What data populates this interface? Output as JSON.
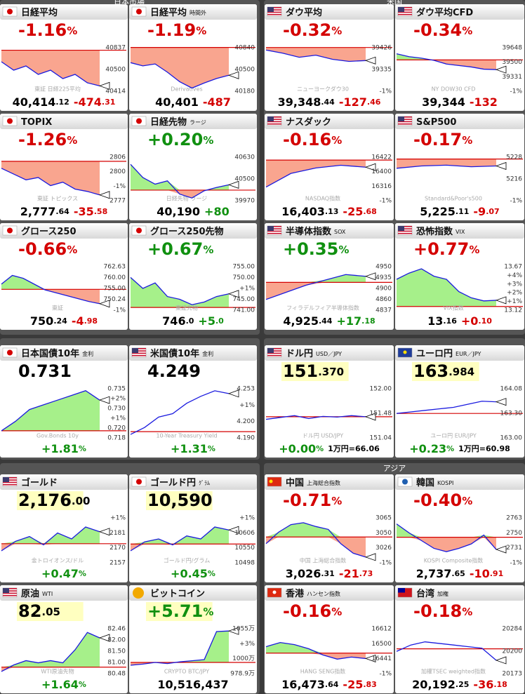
{
  "sections": [
    "日本市場",
    "米国",
    "アジア"
  ],
  "tiles": [
    {
      "flag": "jp",
      "name": "日経平均",
      "main": {
        "text": "-1.16",
        "small": "%"
      },
      "main_color": "#d40000",
      "foot": [
        {
          "text": "40,414",
          "small": ".12",
          "color": "#000000"
        },
        {
          "text": "-474",
          "small": ".31",
          "color": "#d40000"
        }
      ],
      "labels": [
        "40837",
        "40500",
        "40414"
      ],
      "watermark": "東証 日経225平均",
      "base": 40837,
      "line": [
        40700,
        40600,
        40650,
        40550,
        40600,
        40500,
        40550,
        40450,
        40414
      ],
      "ylim": [
        40350,
        40900
      ],
      "fill": true
    },
    {
      "flag": "jp",
      "name": "日経平均",
      "sub": "時間外",
      "main": {
        "text": "-1.19",
        "small": "%"
      },
      "main_color": "#d40000",
      "foot": [
        {
          "text": "40,401",
          "color": "#000000"
        },
        {
          "text": "-487",
          "color": "#d40000"
        }
      ],
      "labels": [
        "40840",
        "40500",
        "40180"
      ],
      "watermark": "Derivatives",
      "base": 40840,
      "line": [
        40600,
        40550,
        40580,
        40450,
        40300,
        40200,
        40280,
        40350,
        40401
      ],
      "ylim": [
        40150,
        40880
      ],
      "fill": true
    },
    {
      "flag": "jp",
      "name": "TOPIX",
      "main": {
        "text": "-1.26",
        "small": "%"
      },
      "main_color": "#d40000",
      "foot": [
        {
          "text": "2,777",
          "small": ".64",
          "color": "#000000"
        },
        {
          "text": "-35",
          "small": ".58",
          "color": "#d40000"
        }
      ],
      "labels": [
        "2806",
        "2800",
        "-1%",
        "2777"
      ],
      "watermark": "東証 トピックス",
      "base": 2806,
      "line": [
        2800,
        2795,
        2790,
        2792,
        2785,
        2788,
        2782,
        2780,
        2777
      ],
      "ylim": [
        2772,
        2812
      ],
      "fill": true
    },
    {
      "flag": "jp",
      "name": "日経先物",
      "sub": "ラージ",
      "main": {
        "text": "+0.20",
        "small": "%"
      },
      "main_color": "#109010",
      "foot": [
        {
          "text": "40,190",
          "color": "#000000"
        },
        {
          "text": "+80",
          "color": "#109010"
        }
      ],
      "labels": [
        "40630",
        "40500",
        "39970"
      ],
      "watermark": "日経先物 ラージ",
      "base": 40110,
      "line": [
        40500,
        40300,
        40200,
        40250,
        40050,
        39990,
        40100,
        40150,
        40190
      ],
      "ylim": [
        39950,
        40650
      ],
      "fill": true
    },
    {
      "flag": "jp",
      "name": "グロース250",
      "main": {
        "text": "-0.66",
        "small": "%"
      },
      "main_color": "#d40000",
      "foot": [
        {
          "text": "750",
          "small": ".24",
          "color": "#000000"
        },
        {
          "text": "-4",
          "small": ".98",
          "color": "#d40000"
        }
      ],
      "labels": [
        "762.63",
        "760.00",
        "755.00",
        "750.24",
        "-1%"
      ],
      "watermark": "東証",
      "base": 755.2,
      "line": [
        757,
        760,
        759,
        757,
        755,
        754,
        753,
        752,
        751,
        750.24
      ],
      "ylim": [
        748,
        764
      ],
      "fill": true
    },
    {
      "flag": "jp",
      "name": "グロース250先物",
      "main": {
        "text": "+0.67",
        "small": "%"
      },
      "main_color": "#109010",
      "foot": [
        {
          "text": "746",
          "small": ".0",
          "color": "#000000"
        },
        {
          "text": "+5",
          "small": ".0",
          "color": "#109010"
        }
      ],
      "labels": [
        "755.00",
        "750.00",
        "+1%",
        "745.00",
        "741.00"
      ],
      "watermark": "東証先物",
      "base": 741,
      "line": [
        752,
        748,
        750,
        745,
        744,
        742,
        743,
        745,
        746
      ],
      "ylim": [
        740,
        757
      ],
      "fill": true
    },
    {
      "flag": "us",
      "name": "ダウ平均",
      "main": {
        "text": "-0.32",
        "small": "%"
      },
      "main_color": "#d40000",
      "foot": [
        {
          "text": "39,348",
          "small": ".44",
          "color": "#000000"
        },
        {
          "text": "-127",
          "small": ".46",
          "color": "#d40000"
        }
      ],
      "labels": [
        "39426",
        "39335",
        "-1%"
      ],
      "watermark": "ニューヨークダウ30",
      "base": 39475,
      "line": [
        39450,
        39420,
        39380,
        39400,
        39360,
        39340,
        39348
      ],
      "ylim": [
        39050,
        39500
      ],
      "fill": true
    },
    {
      "flag": "us",
      "name": "ダウ平均CFD",
      "main": {
        "text": "-0.34",
        "small": "%"
      },
      "main_color": "#d40000",
      "foot": [
        {
          "text": "39,344",
          "color": "#000000"
        },
        {
          "text": "-132",
          "color": "#d40000"
        }
      ],
      "labels": [
        "39648",
        "39500",
        "39331",
        "-1%"
      ],
      "watermark": "NY DOW30 CFD",
      "base": 39476,
      "line": [
        39560,
        39520,
        39500,
        39470,
        39420,
        39400,
        39380,
        39350,
        39344
      ],
      "ylim": [
        39050,
        39680
      ],
      "fill": true
    },
    {
      "flag": "us",
      "name": "ナスダック",
      "main": {
        "text": "-0.16",
        "small": "%"
      },
      "main_color": "#d40000",
      "foot": [
        {
          "text": "16,403",
          "small": ".13",
          "color": "#000000"
        },
        {
          "text": "-25",
          "small": ".68",
          "color": "#d40000"
        }
      ],
      "labels": [
        "16422",
        "16400",
        "16316",
        "-1%"
      ],
      "watermark": "NASDAQ指数",
      "base": 16429,
      "line": [
        16330,
        16380,
        16400,
        16410,
        16403
      ],
      "ylim": [
        16280,
        16450
      ],
      "fill": true
    },
    {
      "flag": "us",
      "name": "S&P500",
      "main": {
        "text": "-0.17",
        "small": "%"
      },
      "main_color": "#d40000",
      "foot": [
        {
          "text": "5,225",
          "small": ".11",
          "color": "#000000"
        },
        {
          "text": "-9",
          "small": ".07",
          "color": "#d40000"
        }
      ],
      "labels": [
        "5228",
        "5216",
        "-1%"
      ],
      "watermark": "Standard&Poor's500",
      "base": 5234,
      "line": [
        5222,
        5225,
        5226,
        5224,
        5225
      ],
      "ylim": [
        5180,
        5240
      ],
      "fill": true
    },
    {
      "flag": "us",
      "name": "半導体指数",
      "sub": "SOX",
      "main": {
        "text": "+0.35",
        "small": "%"
      },
      "main_color": "#109010",
      "foot": [
        {
          "text": "4,925",
          "small": ".44",
          "color": "#000000"
        },
        {
          "text": "+17",
          "small": ".18",
          "color": "#109010"
        }
      ],
      "labels": [
        "4950",
        "4935",
        "4900",
        "4860",
        "4837"
      ],
      "watermark": "フィラデルフィア半導体指数",
      "base": 4908,
      "line": [
        4860,
        4880,
        4900,
        4915,
        4930,
        4925
      ],
      "ylim": [
        4830,
        4960
      ],
      "fill": true
    },
    {
      "flag": "us",
      "name": "恐怖指数",
      "sub": "VIX",
      "main": {
        "text": "+0.77",
        "small": "%"
      },
      "main_color": "#d40000",
      "foot": [
        {
          "text": "13",
          "small": ".16",
          "color": "#000000"
        },
        {
          "text": "+0",
          "small": ".10",
          "color": "#d40000"
        }
      ],
      "labels": [
        "13.67",
        "+4%",
        "+3%",
        "+2%",
        "+1%",
        "13.12"
      ],
      "watermark": "VIX指数",
      "base": 13.06,
      "line": [
        13.5,
        13.6,
        13.67,
        13.55,
        13.5,
        13.3,
        13.2,
        13.15,
        13.16
      ],
      "ylim": [
        13.0,
        13.75
      ],
      "fill": true
    },
    {
      "flag": "jp",
      "name": "日本国債10年",
      "sub": "金利",
      "main": {
        "text": "0.731"
      },
      "main_color": "#000000",
      "foot": [
        {
          "text": "+1.81",
          "small": "%",
          "color": "#109010"
        }
      ],
      "labels": [
        "0.735",
        "+2%",
        "0.730",
        "+1%",
        "0.720",
        "0.718"
      ],
      "watermark": "Gov.Bonds 10y",
      "base": 0.718,
      "line": [
        0.718,
        0.722,
        0.727,
        0.729,
        0.731,
        0.733,
        0.735,
        0.731
      ],
      "ylim": [
        0.715,
        0.737
      ],
      "fill": true
    },
    {
      "flag": "us",
      "name": "米国債10年",
      "sub": "金利",
      "main": {
        "text": "4.249"
      },
      "main_color": "#000000",
      "foot": [
        {
          "text": "+1.31",
          "small": "%",
          "color": "#109010"
        }
      ],
      "labels": [
        "4.253",
        "+1%",
        "4.200",
        "4.190"
      ],
      "watermark": "10-Year Treasury Yield",
      "base": 4.194,
      "line": [
        4.19,
        4.2,
        4.215,
        4.22,
        4.235,
        4.245,
        4.253,
        4.249
      ],
      "ylim": [
        4.185,
        4.26
      ],
      "fill": false
    },
    {
      "flag": "us",
      "name": "ドル円",
      "sub": "USD／JPY",
      "main": {
        "text": "151",
        "small": ".370"
      },
      "main_color": "#000000",
      "main_bg": "#ffffc0",
      "foot": [
        {
          "text": "+0.00",
          "small": "%",
          "color": "#109010"
        },
        {
          "small": "1万円=66.06",
          "color": "#000000"
        }
      ],
      "labels": [
        "152.00",
        "151.48",
        "151.04"
      ],
      "watermark": "ドル円 USD/JPY",
      "base": 151.37,
      "line": [
        151.3,
        151.35,
        151.4,
        151.32,
        151.38,
        151.36,
        151.4,
        151.37
      ],
      "ylim": [
        150.8,
        152.2
      ],
      "fill": false
    },
    {
      "flag": "eu",
      "name": "ユーロ円",
      "sub": "EUR／JPY",
      "main": {
        "text": "163",
        "small": ".984"
      },
      "main_color": "#000000",
      "main_bg": "#ffffc0",
      "foot": [
        {
          "text": "+0.23",
          "small": "%",
          "color": "#109010"
        },
        {
          "small": "1万円=60.98",
          "color": "#000000"
        }
      ],
      "labels": [
        "164.08",
        "163.30",
        "163.00"
      ],
      "watermark": "ユーロ円 EUR/JPY",
      "base": 163.6,
      "line": [
        163.6,
        163.65,
        163.7,
        163.75,
        163.8,
        163.9,
        164.0,
        163.98
      ],
      "ylim": [
        162.8,
        164.5
      ],
      "fill": false
    },
    {
      "flag": "us",
      "name": "ゴールド",
      "main": {
        "text": "2,176",
        "small": ".00"
      },
      "main_color": "#000000",
      "main_bg": "#ffffc0",
      "foot": [
        {
          "text": "+0.47",
          "small": "%",
          "color": "#109010"
        }
      ],
      "labels": [
        "+1%",
        "2181",
        "2170",
        "2157"
      ],
      "watermark": "金トロイオンス/ドル",
      "base": 2166,
      "line": [
        2160,
        2168,
        2172,
        2165,
        2175,
        2170,
        2180,
        2176
      ],
      "ylim": [
        2150,
        2190
      ],
      "fill": true
    },
    {
      "flag": "jp",
      "name": "ゴールド円",
      "sub": "ｸﾞﾗﾑ",
      "main": {
        "text": "10,590"
      },
      "main_color": "#000000",
      "main_bg": "#ffffc0",
      "foot": [
        {
          "text": "+0.45",
          "small": "%",
          "color": "#109010"
        }
      ],
      "labels": [
        "+1%",
        "10606",
        "10550",
        "10498"
      ],
      "watermark": "ゴールド円/グラム",
      "base": 10543,
      "line": [
        10520,
        10550,
        10560,
        10540,
        10570,
        10560,
        10600,
        10590
      ],
      "ylim": [
        10480,
        10640
      ],
      "fill": true
    },
    {
      "flag": "us",
      "name": "原油",
      "sub": "WTI",
      "main": {
        "text": "82",
        "small": ".05"
      },
      "main_color": "#000000",
      "main_bg": "#ffffc0",
      "foot": [
        {
          "text": "+1.64",
          "small": "%",
          "color": "#109010"
        }
      ],
      "labels": [
        "82.46",
        "82.00",
        "81.50",
        "81.00",
        "80.48"
      ],
      "watermark": "WTI原油先物",
      "base": 80.7,
      "line": [
        80.5,
        80.8,
        81.0,
        80.9,
        81.0,
        80.9,
        81.5,
        82.3,
        82.05
      ],
      "ylim": [
        80.4,
        82.6
      ],
      "fill": true
    },
    {
      "flag": "btc",
      "name": "ビットコイン",
      "main": {
        "text": "+5.71",
        "small": "%"
      },
      "main_color": "#109010",
      "main_bg": "#ffffc0",
      "foot": [
        {
          "text": "10,516,437",
          "color": "#000000"
        }
      ],
      "labels": [
        "1055万",
        "+3%",
        "1000万",
        "978.9万"
      ],
      "watermark": "CRYPTO BTC/JPY",
      "base": 995,
      "line": [
        990,
        992,
        995,
        993,
        996,
        998,
        1000,
        1050,
        1051
      ],
      "ylim": [
        975,
        1060
      ],
      "fill": true
    },
    {
      "flag": "cn",
      "name": "中国",
      "sub": "上海総合指数",
      "main": {
        "text": "-0.71",
        "small": "%"
      },
      "main_color": "#d40000",
      "foot": [
        {
          "text": "3,026",
          "small": ".31",
          "color": "#000000"
        },
        {
          "text": "-21",
          "small": ".73",
          "color": "#d40000"
        }
      ],
      "labels": [
        "3065",
        "3050",
        "3026",
        "-1%"
      ],
      "watermark": "中国 上海総合指数",
      "base": 3047,
      "line": [
        3040,
        3052,
        3060,
        3062,
        3058,
        3055,
        3040,
        3030,
        3026
      ],
      "ylim": [
        3020,
        3070
      ],
      "fill": true
    },
    {
      "flag": "kr",
      "name": "韓国",
      "sub": "KOSPI",
      "main": {
        "text": "-0.40",
        "small": "%"
      },
      "main_color": "#d40000",
      "foot": [
        {
          "text": "2,737",
          "small": ".65",
          "color": "#000000"
        },
        {
          "text": "-10",
          "small": ".91",
          "color": "#d40000"
        }
      ],
      "labels": [
        "2763",
        "2750",
        "2731",
        "-1%"
      ],
      "watermark": "KOSPI Composite指数",
      "base": 2748,
      "line": [
        2760,
        2752,
        2745,
        2738,
        2735,
        2738,
        2742,
        2750,
        2737
      ],
      "ylim": [
        2725,
        2768
      ],
      "fill": true
    },
    {
      "flag": "hk",
      "name": "香港",
      "sub": "ハンセン指数",
      "main": {
        "text": "-0.16",
        "small": "%"
      },
      "main_color": "#d40000",
      "foot": [
        {
          "text": "16,473",
          "small": ".64",
          "color": "#000000"
        },
        {
          "text": "-25",
          "small": ".83",
          "color": "#d40000"
        }
      ],
      "labels": [
        "16612",
        "16500",
        "16441",
        "-1%"
      ],
      "watermark": "HANG SENG指数",
      "base": 16499,
      "line": [
        16530,
        16550,
        16540,
        16520,
        16490,
        16470,
        16480,
        16473
      ],
      "ylim": [
        16400,
        16630
      ],
      "fill": true
    },
    {
      "flag": "tw",
      "name": "台湾",
      "sub": "加権",
      "main": {
        "text": "-0.18",
        "small": "%"
      },
      "main_color": "#d40000",
      "foot": [
        {
          "text": "20,192",
          "small": ".25",
          "color": "#000000"
        },
        {
          "text": "-36",
          "small": ".18",
          "color": "#d40000"
        }
      ],
      "labels": [
        "20284",
        "20200",
        "20173"
      ],
      "watermark": "加權TSEC weighted指数",
      "base": 20228,
      "line": [
        20220,
        20240,
        20250,
        20245,
        20240,
        20235,
        20230,
        20192
      ],
      "ylim": [
        20150,
        20300
      ],
      "fill": false
    }
  ]
}
